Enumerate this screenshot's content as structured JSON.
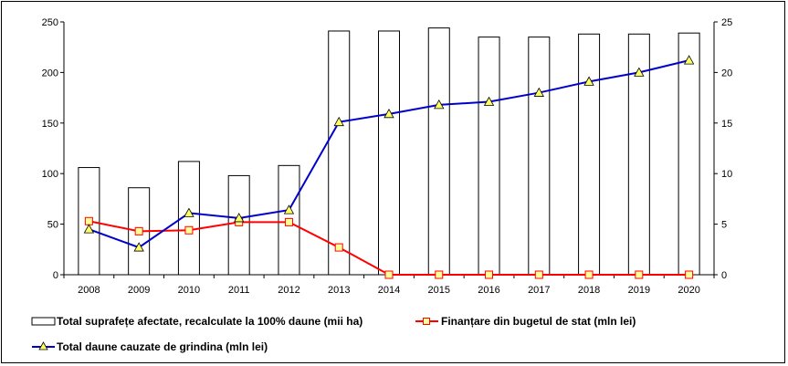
{
  "chart_data": {
    "type": "bar+line",
    "categories": [
      "2008",
      "2009",
      "2010",
      "2011",
      "2012",
      "2013",
      "2014",
      "2015",
      "2016",
      "2017",
      "2018",
      "2019",
      "2020"
    ],
    "series": [
      {
        "name": "Total suprafețe afectate, recalculate la 100% daune (mii ha)",
        "kind": "bar",
        "axis": "left",
        "values": [
          106,
          86,
          112,
          98,
          108,
          241,
          241,
          244,
          235,
          235,
          238,
          238,
          239
        ],
        "color": "#000000"
      },
      {
        "name": "Finanțare din bugetul de stat (mln lei)",
        "kind": "line",
        "axis": "right",
        "marker": "square",
        "values": [
          5.3,
          4.3,
          4.4,
          5.2,
          5.2,
          2.7,
          0,
          0,
          0,
          0,
          0,
          0,
          0
        ],
        "color": "#ff0000",
        "marker_fill": "#ffff99"
      },
      {
        "name": "Total daune cauzate de grindina (mln lei)",
        "kind": "line",
        "axis": "right",
        "marker": "triangle",
        "values": [
          4.5,
          2.7,
          6.1,
          5.6,
          6.4,
          15.1,
          15.9,
          16.8,
          17.1,
          18.0,
          19.1,
          20.0,
          21.2
        ],
        "color": "#0000cc",
        "marker_fill": "#ffff66"
      }
    ],
    "y_left": {
      "ticks": [
        "0",
        "50",
        "100",
        "150",
        "200",
        "250"
      ],
      "lim": [
        0,
        250
      ]
    },
    "y_right": {
      "ticks": [
        "0",
        "5",
        "10",
        "15",
        "20",
        "25"
      ],
      "lim": [
        0,
        25
      ]
    },
    "grid": false,
    "legend_placement": "bottom"
  }
}
